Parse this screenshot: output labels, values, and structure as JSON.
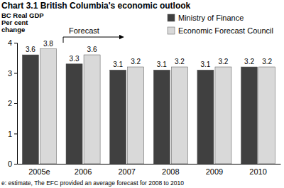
{
  "chart_data": {
    "type": "bar",
    "title": "Chart 3.1 British Columbia's economic outlook",
    "y_label": [
      "BC Real GDP",
      "Per cent",
      "change"
    ],
    "annotations": [
      "Forecast"
    ],
    "footnote": "e: estimate, The EFC provided an average forecast for 2008 to 2010",
    "categories": [
      "2005e",
      "2006",
      "2007",
      "2008",
      "2009",
      "2010"
    ],
    "series": [
      {
        "name": "Ministry of Finance",
        "color": "#404040",
        "values": [
          3.6,
          3.3,
          3.1,
          3.1,
          3.1,
          3.2
        ]
      },
      {
        "name": "Economic Forecast Council",
        "color": "#d9d9d9",
        "values": [
          3.8,
          3.6,
          3.2,
          3.2,
          3.2,
          3.2
        ]
      }
    ],
    "ylim": [
      0,
      4
    ],
    "yticks": [
      0,
      1,
      2,
      3,
      4
    ],
    "grid": false,
    "data_labels": true,
    "legend": "upper right"
  }
}
